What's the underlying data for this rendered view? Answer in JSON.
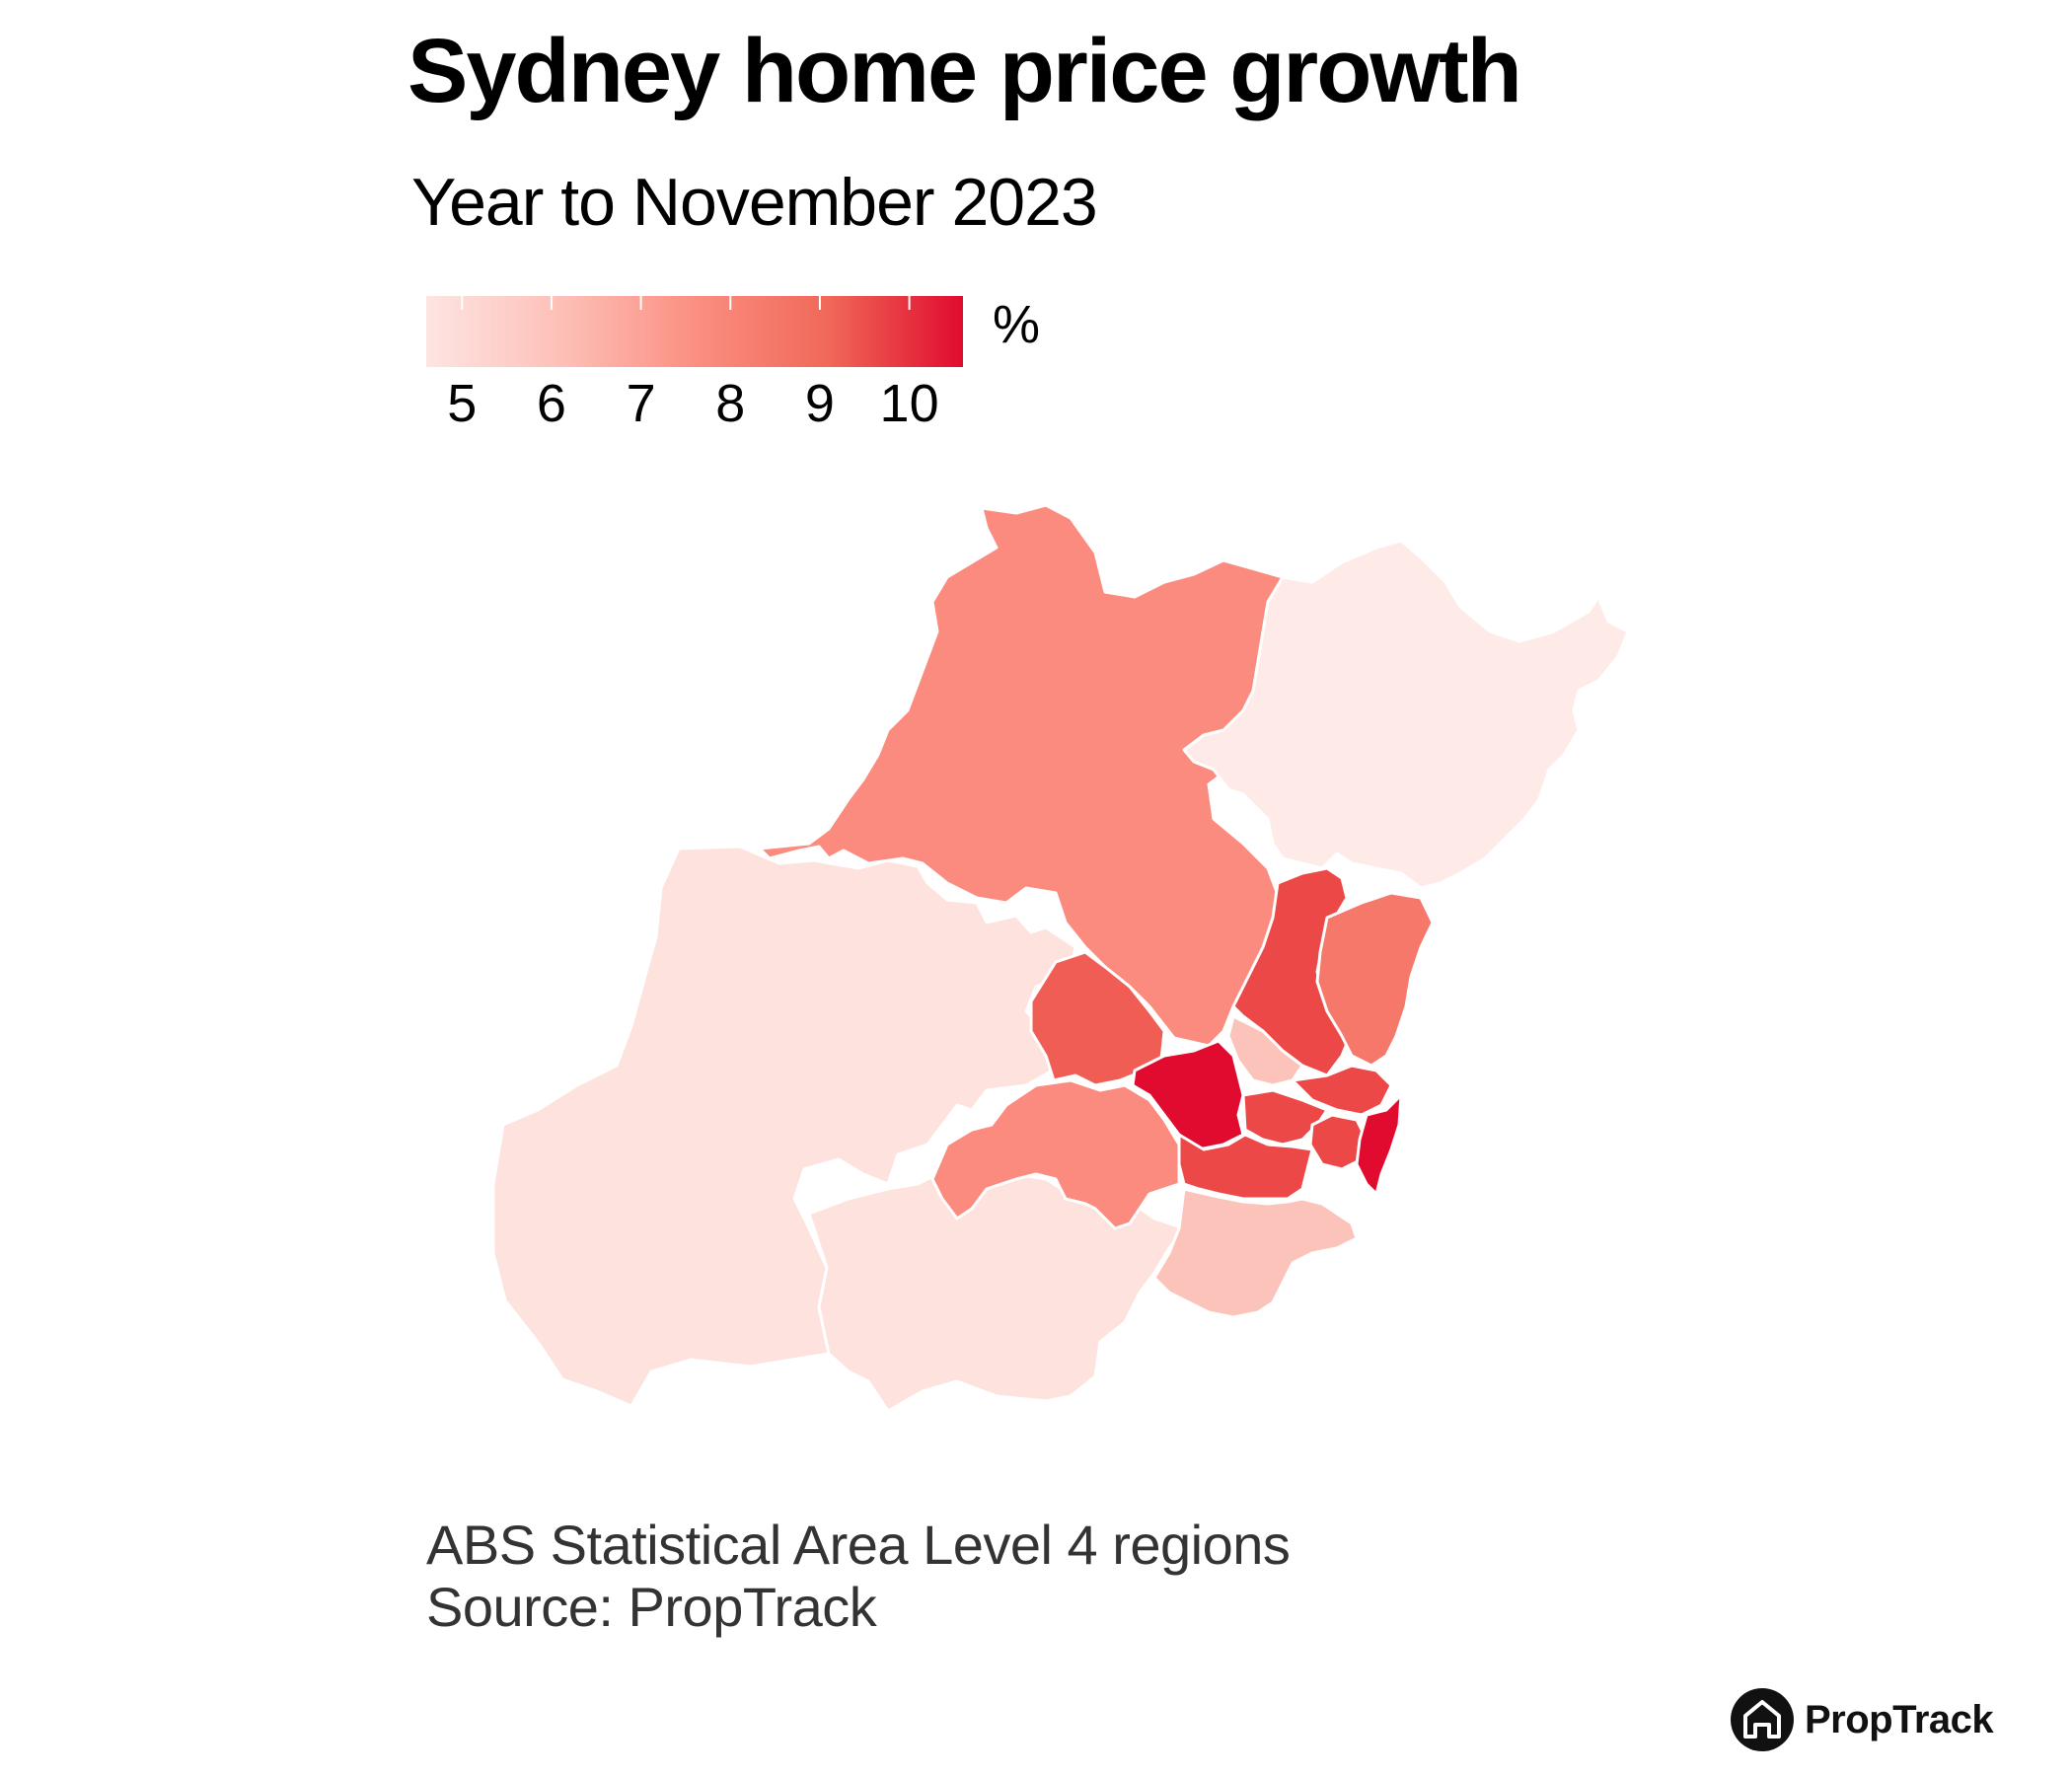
{
  "title": "Sydney home price growth",
  "subtitle": "Year to November 2023",
  "legend": {
    "unit": "%",
    "ticks": [
      "5",
      "6",
      "7",
      "8",
      "9",
      "10"
    ],
    "range": [
      4.6,
      10.6
    ],
    "colors": [
      "#fde5e2",
      "#fdc0b8",
      "#fb8f82",
      "#f06858",
      "#e00b2e"
    ]
  },
  "footnote": {
    "line1": "ABS Statistical Area Level 4 regions",
    "line2": "Source: PropTrack"
  },
  "brand": {
    "name": "PropTrack",
    "logo_icon": "house-icon"
  },
  "map": {
    "colors": {
      "low": "#fde2de",
      "pale": "#feebe8",
      "light": "#fcc3bb",
      "mid": "#fb8b7e",
      "mid_strong": "#f5786b",
      "strong": "#f05d55",
      "stronger": "#ec4848",
      "strongest": "#e00b2e",
      "border": "#ffffff"
    }
  }
}
